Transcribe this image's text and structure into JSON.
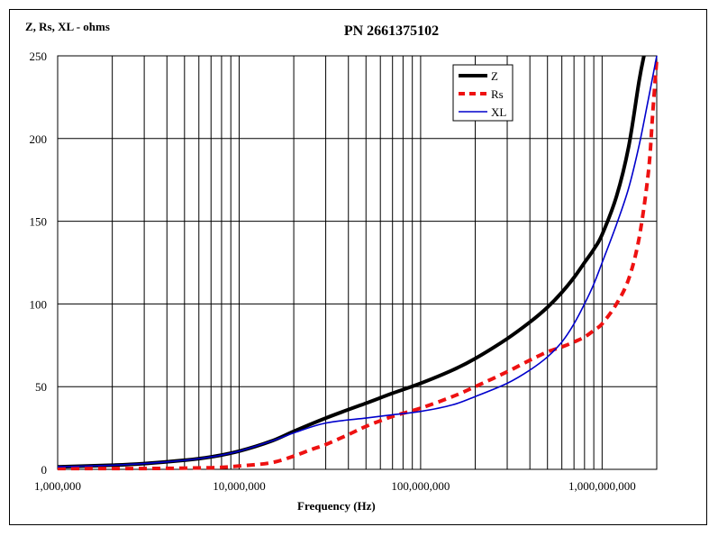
{
  "chart_data": {
    "type": "line",
    "title": "PN 2661375102",
    "ylabel": "Z, Rs, XL - ohms",
    "xlabel": "Frequency (Hz)",
    "xscale": "log",
    "xlim": [
      1000000,
      2000000000
    ],
    "ylim": [
      0,
      250
    ],
    "grid": true,
    "legend_position": "top-right",
    "x_tick_values": [
      1000000,
      10000000,
      100000000,
      1000000000
    ],
    "x_tick_labels": [
      "1,000,000",
      "10,000,000",
      "100,000,000",
      "1,000,000,000"
    ],
    "y_tick_values": [
      0,
      50,
      100,
      150,
      200,
      250
    ],
    "y_tick_labels": [
      "0",
      "50",
      "100",
      "150",
      "200",
      "250"
    ],
    "series": [
      {
        "name": "Z",
        "color": "#000000",
        "style": "solid-thick",
        "x": [
          1000000,
          2000000,
          3000000,
          5000000,
          7000000,
          10000000,
          15000000,
          20000000,
          30000000,
          50000000,
          70000000,
          100000000,
          150000000,
          200000000,
          300000000,
          400000000,
          500000000,
          600000000,
          700000000,
          800000000,
          900000000,
          1000000000,
          1200000000,
          1400000000,
          1600000000,
          1700000000
        ],
        "y": [
          1.5,
          2.5,
          3.5,
          5.5,
          7.5,
          11,
          17,
          23,
          31,
          40,
          46,
          52,
          60,
          67,
          79,
          89,
          98,
          107,
          116,
          125,
          133,
          142,
          165,
          195,
          235,
          250
        ]
      },
      {
        "name": "Rs",
        "color": "#ee1111",
        "style": "dashed-thick",
        "x": [
          1000000,
          3000000,
          7000000,
          10000000,
          15000000,
          20000000,
          25000000,
          30000000,
          40000000,
          50000000,
          70000000,
          100000000,
          150000000,
          200000000,
          300000000,
          400000000,
          500000000,
          600000000,
          700000000,
          800000000,
          900000000,
          1000000000,
          1200000000,
          1400000000,
          1600000000,
          1800000000,
          1900000000,
          2000000000
        ],
        "y": [
          0.5,
          0.5,
          1,
          2,
          4,
          8,
          12,
          15,
          21,
          26,
          32,
          37,
          44,
          50,
          59,
          66,
          71,
          74,
          77,
          80,
          84,
          88,
          100,
          115,
          140,
          180,
          215,
          248
        ]
      },
      {
        "name": "XL",
        "color": "#0000cc",
        "style": "solid-thin",
        "x": [
          1000000,
          2000000,
          3000000,
          5000000,
          7000000,
          10000000,
          15000000,
          20000000,
          30000000,
          50000000,
          70000000,
          100000000,
          150000000,
          200000000,
          300000000,
          400000000,
          500000000,
          600000000,
          700000000,
          800000000,
          900000000,
          1000000000,
          1200000000,
          1400000000,
          1600000000,
          1800000000,
          2000000000
        ],
        "y": [
          1.5,
          2.5,
          3.5,
          5.5,
          7.5,
          11,
          17,
          22,
          28,
          31,
          33,
          35,
          39,
          44,
          52,
          60,
          68,
          77,
          88,
          100,
          112,
          125,
          148,
          170,
          196,
          224,
          250
        ]
      }
    ]
  }
}
